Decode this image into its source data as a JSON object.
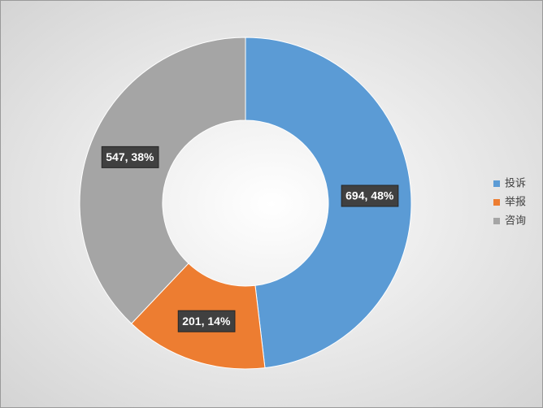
{
  "chart_data": {
    "type": "doughnut",
    "categories": [
      "投诉",
      "举报",
      "咨询"
    ],
    "values": [
      694,
      201,
      547
    ],
    "value_labels": [
      "694, 48%",
      "201, 14%",
      "547, 38%"
    ],
    "colors": [
      "#5b9bd5",
      "#ed7d31",
      "#a5a5a5"
    ],
    "legend": "right"
  }
}
